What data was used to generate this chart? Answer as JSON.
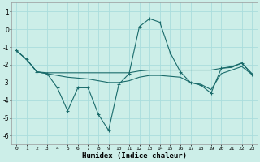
{
  "xlabel": "Humidex (Indice chaleur)",
  "bg_color": "#cceee8",
  "grid_color": "#aadddd",
  "line_color": "#1a6b6b",
  "xlim": [
    -0.5,
    23.5
  ],
  "ylim": [
    -6.5,
    1.5
  ],
  "yticks": [
    1,
    0,
    -1,
    -2,
    -3,
    -4,
    -5,
    -6
  ],
  "xtick_labels": [
    "0",
    "1",
    "2",
    "3",
    "4",
    "5",
    "6",
    "7",
    "8",
    "9",
    "10",
    "11",
    "12",
    "13",
    "14",
    "15",
    "16",
    "17",
    "18",
    "19",
    "20",
    "21",
    "22",
    "23"
  ],
  "series1_x": [
    0,
    1,
    2,
    3,
    4,
    5,
    6,
    7,
    8,
    9,
    10,
    11,
    12,
    13,
    14,
    15,
    16,
    17,
    18,
    19,
    20,
    21,
    22,
    23
  ],
  "series1_y": [
    -1.2,
    -1.7,
    -2.4,
    -2.5,
    -3.3,
    -4.6,
    -3.3,
    -3.3,
    -4.8,
    -5.7,
    -3.1,
    -2.5,
    0.15,
    0.6,
    0.4,
    -1.3,
    -2.4,
    -3.0,
    -3.15,
    -3.6,
    -2.2,
    -2.1,
    -1.9,
    -2.55
  ],
  "series2_x": [
    0,
    1,
    2,
    3,
    4,
    5,
    6,
    7,
    8,
    9,
    10,
    11,
    12,
    13,
    14,
    15,
    16,
    17,
    18,
    19,
    20,
    21,
    22,
    23
  ],
  "series2_y": [
    -1.2,
    -1.7,
    -2.4,
    -2.45,
    -2.45,
    -2.45,
    -2.45,
    -2.45,
    -2.45,
    -2.45,
    -2.45,
    -2.45,
    -2.35,
    -2.3,
    -2.3,
    -2.3,
    -2.3,
    -2.3,
    -2.3,
    -2.3,
    -2.2,
    -2.15,
    -1.9,
    -2.5
  ],
  "series3_x": [
    0,
    1,
    2,
    3,
    4,
    5,
    6,
    7,
    8,
    9,
    10,
    11,
    12,
    13,
    14,
    15,
    16,
    17,
    18,
    19,
    20,
    21,
    22,
    23
  ],
  "series3_y": [
    -1.2,
    -1.7,
    -2.4,
    -2.5,
    -2.6,
    -2.7,
    -2.75,
    -2.8,
    -2.9,
    -3.0,
    -3.0,
    -2.9,
    -2.7,
    -2.6,
    -2.6,
    -2.65,
    -2.7,
    -3.0,
    -3.1,
    -3.4,
    -2.5,
    -2.3,
    -2.1,
    -2.55
  ]
}
